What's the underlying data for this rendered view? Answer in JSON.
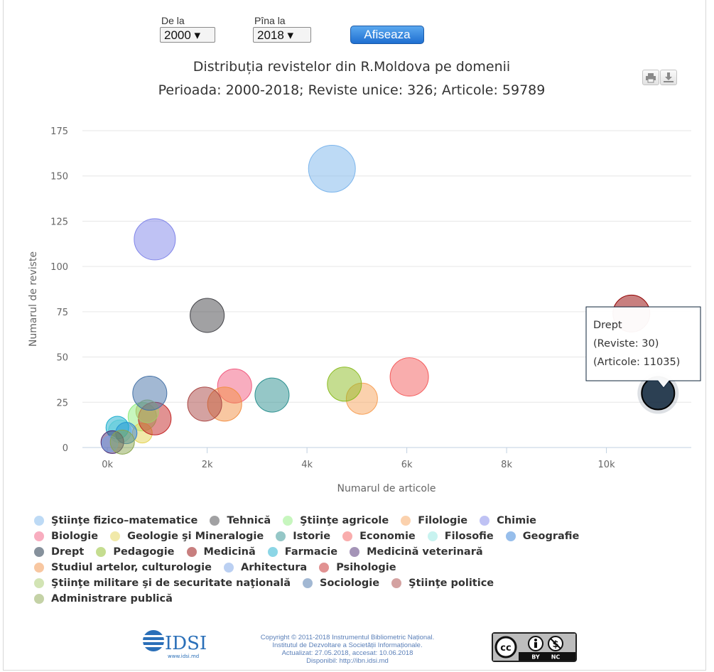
{
  "controls": {
    "from_label": "De la",
    "from_value": "2000",
    "to_label": "Pîna la",
    "to_value": "2018",
    "submit_label": "Afiseaza"
  },
  "icons": [
    "print-icon",
    "download-icon"
  ],
  "chart_data": {
    "type": "bubble",
    "title": "Distribuția revistelor din R.Moldova pe domenii",
    "subtitle": "Perioada: 2000-2018; Reviste unice: 326; Articole: 59789",
    "xlabel": "Numarul de articole",
    "ylabel": "Numarul de reviste",
    "xlim": [
      -500,
      11700
    ],
    "ylim": [
      0,
      175
    ],
    "x_ticks": [
      0,
      2000,
      4000,
      6000,
      8000,
      10000
    ],
    "x_tick_labels": [
      "0k",
      "2k",
      "4k",
      "6k",
      "8k",
      "10k"
    ],
    "y_ticks": [
      0,
      25,
      50,
      75,
      100,
      125,
      150,
      175
    ],
    "grid": true,
    "legend_position": "bottom",
    "series": [
      {
        "name": "Ştiinţe fizico–matematice",
        "color": "#7cb5ec",
        "x": 4500,
        "y": 154,
        "r": 33
      },
      {
        "name": "Tehnică",
        "color": "#434348",
        "x": 2000,
        "y": 73,
        "r": 24
      },
      {
        "name": "Ştiinţe agricole",
        "color": "#90ed7d",
        "x": 700,
        "y": 17,
        "r": 20
      },
      {
        "name": "Filologie",
        "color": "#f7a35c",
        "x": 5100,
        "y": 27,
        "r": 22
      },
      {
        "name": "Chimie",
        "color": "#8085e9",
        "x": 950,
        "y": 115,
        "r": 29
      },
      {
        "name": "Biologie",
        "color": "#f15c80",
        "x": 2550,
        "y": 34,
        "r": 24
      },
      {
        "name": "Geologie şi Mineralogie",
        "color": "#e4d354",
        "x": 700,
        "y": 8,
        "r": 14
      },
      {
        "name": "Istorie",
        "color": "#2b908f",
        "x": 3300,
        "y": 29,
        "r": 24
      },
      {
        "name": "Economie",
        "color": "#f45b5b",
        "x": 6050,
        "y": 39,
        "r": 27
      },
      {
        "name": "Filosofie",
        "color": "#91e8e1",
        "x": 250,
        "y": 9,
        "r": 16
      },
      {
        "name": "Geografie",
        "color": "#2f7ed8",
        "x": 380,
        "y": 8,
        "r": 15
      },
      {
        "name": "Drept",
        "color": "#0d233a",
        "x": 11035,
        "y": 30,
        "r": 23
      },
      {
        "name": "Pedagogie",
        "color": "#8bbc21",
        "x": 4750,
        "y": 35,
        "r": 24
      },
      {
        "name": "Medicină",
        "color": "#910000",
        "x": 10500,
        "y": 74,
        "r": 26
      },
      {
        "name": "Farmacie",
        "color": "#1aadce",
        "x": 200,
        "y": 11,
        "r": 16
      },
      {
        "name": "Medicină veterinară",
        "color": "#492970",
        "x": 100,
        "y": 3,
        "r": 16
      },
      {
        "name": "Studiul artelor, culturologie",
        "color": "#f28f43",
        "x": 2350,
        "y": 24,
        "r": 24
      },
      {
        "name": "Arhitectura",
        "color": "#77a1e5",
        "x": 50,
        "y": 2,
        "r": 11
      },
      {
        "name": "Psihologie",
        "color": "#c42525",
        "x": 950,
        "y": 16,
        "r": 23
      },
      {
        "name": "Ştiinţe militare şi de securitate naţională",
        "color": "#a6c96a",
        "x": 800,
        "y": 20,
        "r": 16
      },
      {
        "name": "Sociologie",
        "color": "#4572a7",
        "x": 850,
        "y": 30,
        "r": 24
      },
      {
        "name": "Ştiinţe politice",
        "color": "#aa4643",
        "x": 1950,
        "y": 24,
        "r": 24
      },
      {
        "name": "Administrare publică",
        "color": "#89a54e",
        "x": 300,
        "y": 3,
        "r": 17
      }
    ],
    "tooltip": {
      "series": "Drept",
      "line1": "(Reviste: 30)",
      "line2": "(Articole: 11035)"
    }
  },
  "legend_rows": [
    [
      0,
      1,
      2,
      3,
      4
    ],
    [
      5,
      6,
      7,
      8,
      9,
      10
    ],
    [
      11,
      12,
      13,
      14,
      15
    ],
    [
      16,
      17,
      18
    ],
    [
      19,
      20,
      21
    ],
    [
      22
    ]
  ],
  "footer": {
    "logo_text": "IDSI",
    "logo_url_text": "www.idsi.md",
    "line1": "Copyright © 2011-2018 Instrumentul Bibliometric Național.",
    "line2": "Institutul de Dezvoltare a Societății Informaționale.",
    "line3": "Actualizat: 27.05.2018, accesat: 10.06.2018",
    "line4": "Disponibil: http://ibn.idsi.md",
    "license_labels": [
      "BY",
      "NC"
    ]
  }
}
